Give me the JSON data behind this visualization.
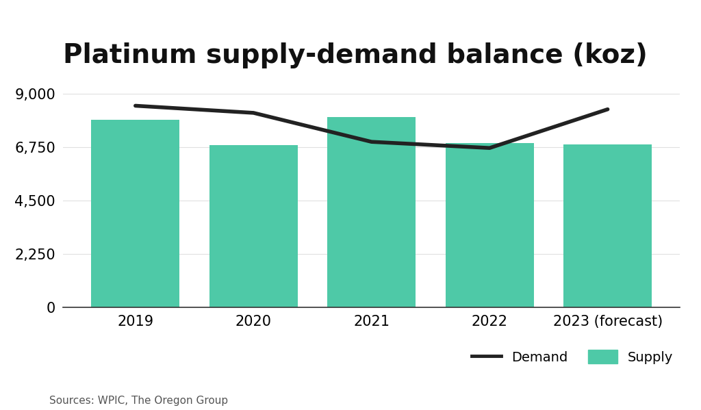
{
  "title": "Platinum supply-demand balance (koz)",
  "categories": [
    "2019",
    "2020",
    "2021",
    "2022",
    "2023 (forecast)"
  ],
  "supply": [
    7920,
    6830,
    8020,
    6920,
    6870
  ],
  "demand": [
    8500,
    8200,
    6980,
    6720,
    8350
  ],
  "supply_color": "#4ec9a7",
  "demand_color": "#222222",
  "background_color": "#ffffff",
  "yticks": [
    0,
    2250,
    4500,
    6750,
    9000
  ],
  "ylim": [
    0,
    9500
  ],
  "source_text": "Sources: WPIC, The Oregon Group",
  "title_fontsize": 28,
  "axis_fontsize": 15,
  "source_fontsize": 11,
  "bar_width": 0.75,
  "legend_fontsize": 14
}
